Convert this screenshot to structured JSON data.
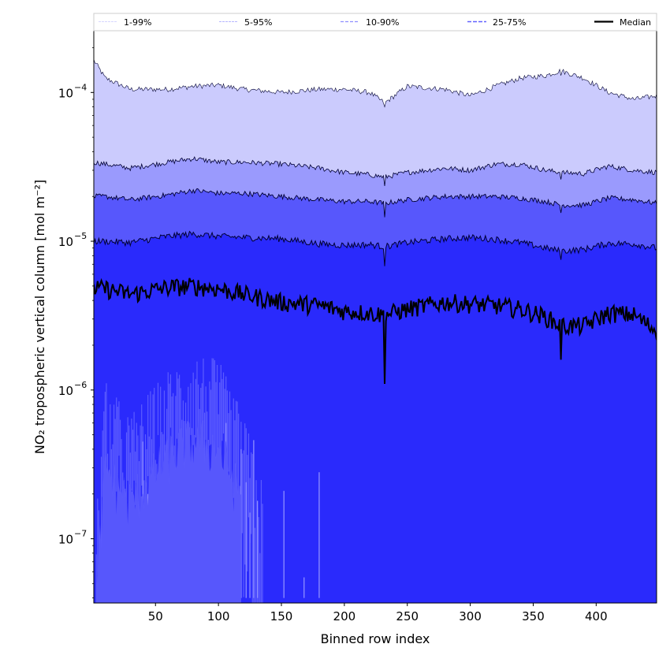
{
  "chart_data": {
    "type": "area",
    "title": "",
    "xlabel": "Binned row index",
    "ylabel": "NO₂ tropospheric vertical column [mol m⁻²]",
    "xlim": [
      1,
      448
    ],
    "ylim": [
      3.7e-08,
      0.00026
    ],
    "y_scale": "log",
    "x_ticks": [
      50,
      100,
      150,
      200,
      250,
      300,
      350,
      400
    ],
    "x_tick_labels": [
      "50",
      "100",
      "150",
      "200",
      "250",
      "300",
      "350",
      "400"
    ],
    "y_ticks": [
      1e-07,
      1e-06,
      1e-05,
      0.0001
    ],
    "y_tick_labels": [
      "10",
      "10",
      "10",
      "10"
    ],
    "y_tick_exponents": [
      "−7",
      "−6",
      "−5",
      "−4"
    ],
    "legend_position": "top",
    "legend": [
      "1-99%",
      "5-95%",
      "10-90%",
      "25-75%",
      "Median"
    ],
    "colors": {
      "band_1_99": "#2a2afc",
      "band_5_95": "#5757fc",
      "band_10_90": "#9a9afd",
      "band_25_75": "#cbcbfd",
      "median": "#000000",
      "line_1_99": "#d6d6ff",
      "line_5_95": "#b5b5ff",
      "line_10_90": "#8f8fff",
      "line_25_75": "#6262ff"
    },
    "x_knots": [
      1,
      10,
      30,
      60,
      80,
      100,
      120,
      150,
      180,
      200,
      220,
      232,
      250,
      280,
      300,
      320,
      340,
      360,
      372,
      390,
      410,
      430,
      448
    ],
    "series": [
      {
        "name": "Median",
        "values": [
          4.8e-06,
          4.8e-06,
          4.4e-06,
          4.9e-06,
          5e-06,
          4.8e-06,
          4.4e-06,
          3.9e-06,
          3.7e-06,
          3.4e-06,
          3.3e-06,
          3.2e-06,
          3.5e-06,
          3.9e-06,
          3.8e-06,
          3.7e-06,
          3.5e-06,
          3.1e-06,
          2.7e-06,
          2.7e-06,
          3.3e-06,
          3.2e-06,
          2.5e-06
        ]
      },
      {
        "name": "25th percentile",
        "values": [
          3.7e-08,
          5e-07,
          3e-07,
          6e-07,
          8e-07,
          7e-07,
          3e-07,
          3.7e-08,
          3.7e-08,
          3.7e-08,
          3.7e-08,
          3.7e-08,
          3.7e-08,
          3.7e-08,
          3.7e-08,
          3.7e-08,
          3.7e-08,
          3.7e-08,
          3.7e-08,
          3.7e-08,
          3.7e-08,
          3.7e-08,
          3.7e-08
        ]
      },
      {
        "name": "75th percentile",
        "values": [
          1e-05,
          1e-05,
          9.8e-06,
          1.08e-05,
          1.12e-05,
          1.08e-05,
          1.06e-05,
          1.04e-05,
          9.6e-06,
          9.4e-06,
          9.5e-06,
          9.2e-06,
          9.8e-06,
          1.04e-05,
          1.06e-05,
          1.03e-05,
          9.8e-06,
          9e-06,
          8.6e-06,
          8.8e-06,
          9.7e-06,
          9.6e-06,
          9e-06
        ]
      },
      {
        "name": "10th percentile",
        "values": [
          3.7e-08,
          3.7e-08,
          3.7e-08,
          3.7e-08,
          3.7e-08,
          3.7e-08,
          3.7e-08,
          3.7e-08,
          3.7e-08,
          3.7e-08,
          3.7e-08,
          3.7e-08,
          3.7e-08,
          3.7e-08,
          3.7e-08,
          3.7e-08,
          3.7e-08,
          3.7e-08,
          3.7e-08,
          3.7e-08,
          3.7e-08,
          3.7e-08,
          3.7e-08
        ]
      },
      {
        "name": "90th percentile",
        "values": [
          2e-05,
          2e-05,
          1.9e-05,
          2.05e-05,
          2.2e-05,
          2.1e-05,
          2.1e-05,
          2e-05,
          1.9e-05,
          1.85e-05,
          1.85e-05,
          1.8e-05,
          1.9e-05,
          2e-05,
          2e-05,
          2e-05,
          1.95e-05,
          1.85e-05,
          1.75e-05,
          1.75e-05,
          1.95e-05,
          1.9e-05,
          1.8e-05
        ]
      },
      {
        "name": "5th percentile",
        "values": [
          3.7e-08,
          3.7e-08,
          3.7e-08,
          3.7e-08,
          3.7e-08,
          3.7e-08,
          3.7e-08,
          3.7e-08,
          3.7e-08,
          3.7e-08,
          3.7e-08,
          3.7e-08,
          3.7e-08,
          3.7e-08,
          3.7e-08,
          3.7e-08,
          3.7e-08,
          3.7e-08,
          3.7e-08,
          3.7e-08,
          3.7e-08,
          3.7e-08,
          3.7e-08
        ]
      },
      {
        "name": "95th percentile",
        "values": [
          3.4e-05,
          3.3e-05,
          3.1e-05,
          3.4e-05,
          3.6e-05,
          3.4e-05,
          3.4e-05,
          3.3e-05,
          3.1e-05,
          2.9e-05,
          2.8e-05,
          2.7e-05,
          2.9e-05,
          3.1e-05,
          3e-05,
          3.3e-05,
          3.3e-05,
          3e-05,
          2.9e-05,
          2.85e-05,
          3.2e-05,
          3e-05,
          2.9e-05
        ]
      },
      {
        "name": "1st percentile",
        "values": [
          3.7e-08,
          3.7e-08,
          3.7e-08,
          3.7e-08,
          3.7e-08,
          3.7e-08,
          3.7e-08,
          3.7e-08,
          3.7e-08,
          3.7e-08,
          3.7e-08,
          3.7e-08,
          3.7e-08,
          3.7e-08,
          3.7e-08,
          3.7e-08,
          3.7e-08,
          3.7e-08,
          3.7e-08,
          3.7e-08,
          3.7e-08,
          3.7e-08,
          3.7e-08
        ]
      },
      {
        "name": "99th percentile",
        "values": [
          0.000165,
          0.000125,
          0.000105,
          0.000105,
          0.00011,
          0.000112,
          0.000105,
          0.0001,
          0.000105,
          0.000105,
          0.0001,
          8.5e-05,
          0.00011,
          0.000105,
          9.5e-05,
          0.00011,
          0.000125,
          0.00013,
          0.00014,
          0.000125,
          0.0001,
          9e-05,
          9.5e-05
        ]
      }
    ],
    "dips": [
      {
        "x": 232,
        "median": 1.1e-06,
        "p75": 6.8e-06,
        "p90": 1.45e-05,
        "p95": 2.35e-05,
        "p99": 8e-05
      },
      {
        "x": 372,
        "median": 1.6e-06,
        "p75": 7.5e-06,
        "p90": 1.55e-05,
        "p95": 2.6e-05,
        "p99": 0.00013
      }
    ]
  }
}
